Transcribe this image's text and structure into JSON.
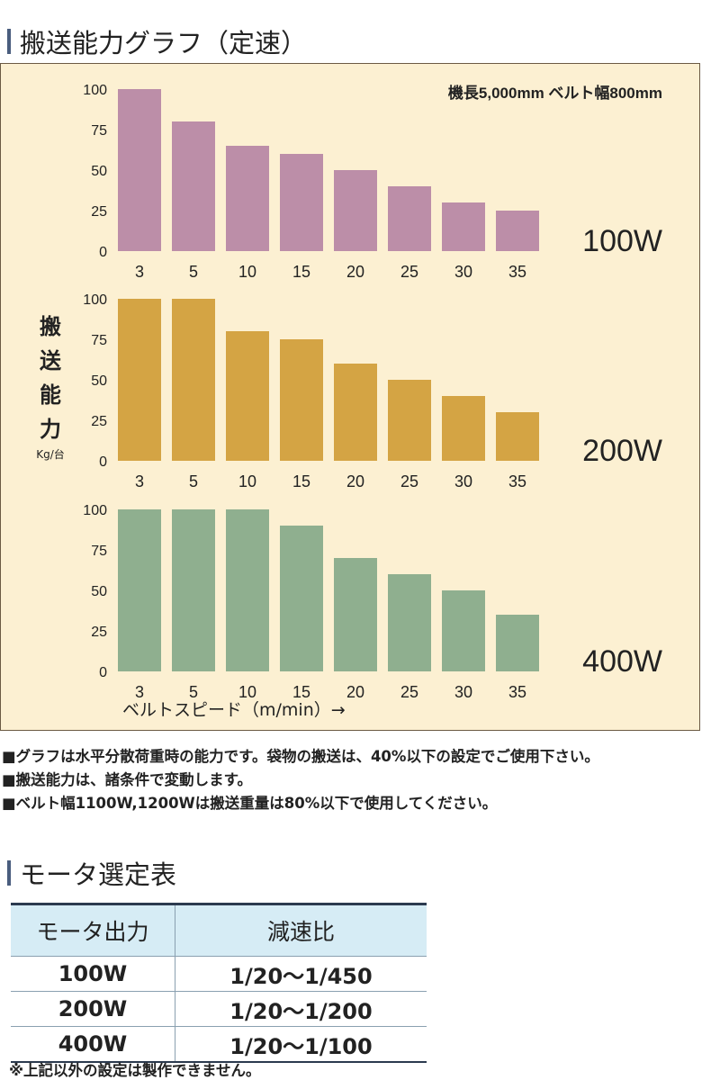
{
  "section1": {
    "title": "搬送能力グラフ（定速）"
  },
  "chart_panel": {
    "condition": "機長5,000mm ベルト幅800mm",
    "ylabel": [
      "搬",
      "送",
      "能",
      "力"
    ],
    "yunit": "Kg/台",
    "xlabel": "ベルトスピード（m/min）→"
  },
  "chart_data": [
    {
      "type": "bar",
      "label": "100W",
      "color": "#bc8ea8",
      "categories": [
        "3",
        "5",
        "10",
        "15",
        "20",
        "25",
        "30",
        "35"
      ],
      "values": [
        100,
        80,
        65,
        60,
        50,
        40,
        30,
        25
      ],
      "ylim": [
        0,
        100
      ],
      "yticks": [
        "0",
        "25",
        "50",
        "75",
        "100"
      ]
    },
    {
      "type": "bar",
      "label": "200W",
      "color": "#d4a444",
      "categories": [
        "3",
        "5",
        "10",
        "15",
        "20",
        "25",
        "30",
        "35"
      ],
      "values": [
        100,
        100,
        80,
        75,
        60,
        50,
        40,
        30
      ],
      "ylim": [
        0,
        100
      ],
      "yticks": [
        "0",
        "25",
        "50",
        "75",
        "100"
      ]
    },
    {
      "type": "bar",
      "label": "400W",
      "color": "#8faf8f",
      "categories": [
        "3",
        "5",
        "10",
        "15",
        "20",
        "25",
        "30",
        "35"
      ],
      "values": [
        100,
        100,
        100,
        90,
        70,
        60,
        50,
        35
      ],
      "ylim": [
        0,
        100
      ],
      "yticks": [
        "0",
        "25",
        "50",
        "75",
        "100"
      ]
    }
  ],
  "notes": [
    "■グラフは水平分散荷重時の能力です。袋物の搬送は、40%以下の設定でご使用下さい。",
    "■搬送能力は、諸条件で変動します。",
    "■ベルト幅1100W,1200Wは搬送重量は80%以下で使用してください。"
  ],
  "section2": {
    "title": "モータ選定表"
  },
  "motor_table": {
    "headers": [
      "モータ出力",
      "減速比"
    ],
    "rows": [
      [
        "100W",
        "1/20～1/450"
      ],
      [
        "200W",
        "1/20～1/200"
      ],
      [
        "400W",
        "1/20～1/100"
      ]
    ]
  },
  "footnote": "※上記以外の設定は製作できません。"
}
